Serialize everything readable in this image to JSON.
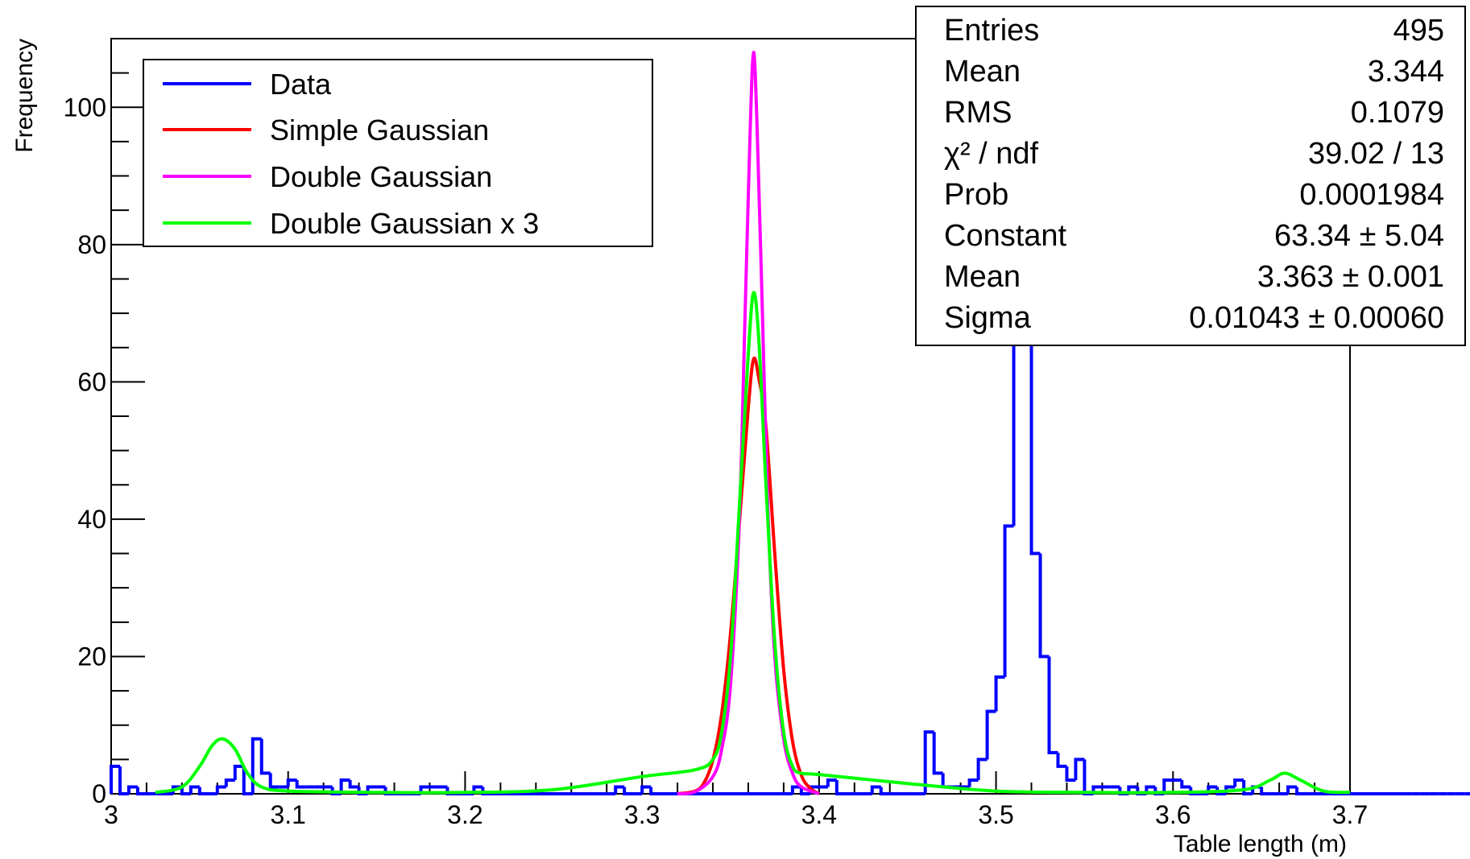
{
  "chart_data": {
    "type": "line",
    "title": "",
    "xlabel": "Table length (m)",
    "ylabel": "Frequency",
    "xlim": [
      3.0,
      3.7
    ],
    "ylim": [
      0,
      110
    ],
    "x_ticks": [
      "3",
      "3.1",
      "3.2",
      "3.3",
      "3.4",
      "3.5",
      "3.6",
      "3.7"
    ],
    "y_ticks": [
      "0",
      "20",
      "40",
      "60",
      "80",
      "100"
    ],
    "grid": false,
    "legend_position": "top-left",
    "histogram": {
      "name": "Data",
      "color": "#0000ff",
      "bin_width": 0.005,
      "counts": [
        4,
        0,
        1,
        0,
        0,
        0,
        0,
        1,
        0,
        1,
        0,
        0,
        1,
        2,
        4,
        0,
        8,
        3,
        1,
        1,
        2,
        1,
        1,
        1,
        1,
        0,
        2,
        1,
        0,
        1,
        1,
        0,
        0,
        0,
        0,
        1,
        1,
        1,
        0,
        0,
        0,
        1,
        0,
        0,
        0,
        0,
        0,
        0,
        0,
        0,
        0,
        0,
        0,
        0,
        0,
        0,
        0,
        1,
        0,
        0,
        1,
        0,
        0,
        0,
        0,
        0,
        0,
        0,
        0,
        0,
        0,
        0,
        0,
        0,
        0,
        0,
        0,
        1,
        0,
        1,
        1,
        2,
        0,
        0,
        0,
        0,
        1,
        0,
        0,
        0,
        0,
        0,
        9,
        3,
        1,
        1,
        1,
        2,
        5,
        12,
        17,
        39,
        95,
        82,
        35,
        20,
        6,
        4,
        2,
        5,
        0,
        1,
        1,
        1,
        0,
        1,
        0,
        1,
        0,
        2,
        2,
        1,
        0,
        0,
        1,
        0,
        1,
        2,
        0,
        1,
        0,
        0,
        0,
        1,
        0,
        0,
        0,
        0,
        0,
        0,
        0,
        0,
        0,
        0,
        0,
        0,
        0,
        0,
        0,
        0,
        0,
        0,
        0,
        0,
        0,
        0,
        0,
        0,
        0,
        0,
        0,
        0,
        1,
        0,
        0,
        0,
        0,
        0,
        0,
        0,
        1,
        0,
        0,
        0,
        0,
        0,
        0,
        0,
        1,
        2,
        3,
        2,
        2,
        1,
        0,
        0,
        1,
        1
      ]
    },
    "series": [
      {
        "name": "Simple Gaussian",
        "color": "#ff0000",
        "x": [
          3.32,
          3.33,
          3.335,
          3.34,
          3.345,
          3.35,
          3.355,
          3.36,
          3.363,
          3.366,
          3.37,
          3.375,
          3.38,
          3.385,
          3.39,
          3.395,
          3.4
        ],
        "y": [
          0.0,
          0.4,
          1.6,
          4.9,
          11.7,
          23.4,
          39.5,
          56.2,
          63.3,
          60.5,
          53.4,
          34.9,
          18.1,
          7.7,
          2.7,
          0.8,
          0.0
        ]
      },
      {
        "name": "Double Gaussian",
        "color": "#ff00ff",
        "x": [
          3.32,
          3.33,
          3.34,
          3.345,
          3.35,
          3.355,
          3.358,
          3.361,
          3.363,
          3.365,
          3.368,
          3.371,
          3.375,
          3.38,
          3.385,
          3.39,
          3.4
        ],
        "y": [
          0.0,
          0.3,
          2.5,
          6.5,
          16.0,
          40.0,
          68.0,
          96.0,
          108.0,
          97.0,
          70.0,
          42.0,
          20.0,
          8.0,
          3.0,
          1.0,
          0.0
        ]
      },
      {
        "name": "Double Gaussian x 3",
        "color": "#00ff00",
        "x": [
          3.025,
          3.04,
          3.05,
          3.057,
          3.063,
          3.07,
          3.077,
          3.085,
          3.1,
          3.15,
          3.2,
          3.25,
          3.3,
          3.33,
          3.34,
          3.345,
          3.35,
          3.355,
          3.36,
          3.363,
          3.366,
          3.37,
          3.375,
          3.38,
          3.385,
          3.39,
          3.4,
          3.45,
          3.5,
          3.55,
          3.6,
          3.64,
          3.655,
          3.663,
          3.672,
          3.685,
          3.7
        ],
        "y": [
          0.2,
          1.0,
          4.0,
          7.0,
          8.0,
          6.5,
          3.0,
          1.0,
          0.4,
          0.2,
          0.2,
          0.6,
          2.5,
          3.5,
          5.0,
          9.0,
          20.0,
          42.0,
          64.0,
          73.0,
          66.0,
          45.0,
          22.0,
          9.0,
          4.0,
          3.0,
          2.8,
          1.5,
          0.4,
          0.2,
          0.2,
          0.6,
          2.0,
          3.0,
          2.0,
          0.4,
          0.2
        ]
      }
    ],
    "stats_box": {
      "rows": [
        {
          "label": "Entries",
          "value": "495"
        },
        {
          "label": "Mean",
          "value": "3.344"
        },
        {
          "label": "RMS",
          "value": "0.1079"
        },
        {
          "label": "χ² / ndf",
          "value": "39.02 / 13"
        },
        {
          "label": "Prob",
          "value": "0.0001984"
        },
        {
          "label": "Constant",
          "value": "63.34 ± 5.04"
        },
        {
          "label": "Mean",
          "value": "3.363 ± 0.001"
        },
        {
          "label": "Sigma",
          "value": "0.01043 ± 0.00060"
        }
      ]
    }
  }
}
